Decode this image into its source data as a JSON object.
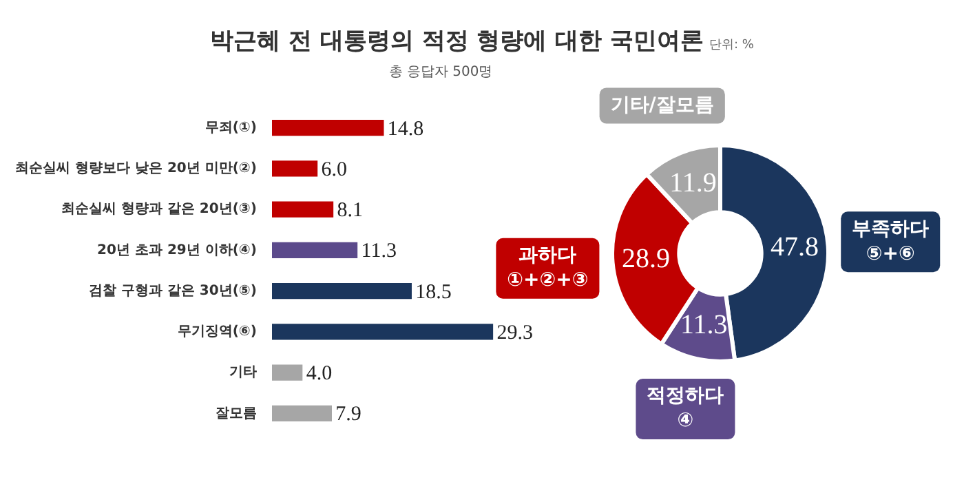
{
  "chart_data": [
    {
      "type": "bar",
      "orientation": "horizontal",
      "title": "박근혜 전 대통령의 적정 형량에 대한 국민여론",
      "subtitle": "총 응답자 500명",
      "annotations": [
        "단위: %"
      ],
      "categories": [
        "무죄(①)",
        "최순실씨 형량보다 낮은 20년 미만(②)",
        "최순실씨 형량과 같은 20년(③)",
        "20년 초과 29년 이하(④)",
        "검찰 구형과 같은 30년(⑤)",
        "무기징역(⑥)",
        "기타",
        "잘모름"
      ],
      "values": [
        14.8,
        6.0,
        8.1,
        11.3,
        18.5,
        29.3,
        4.0,
        7.9
      ],
      "colors": [
        "#c00000",
        "#c00000",
        "#c00000",
        "#5b4a8b",
        "#1b365d",
        "#1b365d",
        "#a6a6a6",
        "#a6a6a6"
      ],
      "value_labels": [
        "14.8",
        "6.0",
        "8.1",
        "11.3",
        "18.5",
        "29.3",
        "4.0",
        "7.9"
      ],
      "tick_labels": "y",
      "legend": false
    },
    {
      "type": "donut",
      "categories": [
        "부족하다 ⑤+⑥",
        "적정하다 ④",
        "과하다 ①+②+③",
        "기타/잘모름"
      ],
      "values": [
        47.8,
        11.3,
        28.9,
        11.9
      ],
      "colors": [
        "#1b365d",
        "#5e4b8b",
        "#c00000",
        "#a6a6a6"
      ],
      "data_labels": true,
      "legend": false
    }
  ]
}
